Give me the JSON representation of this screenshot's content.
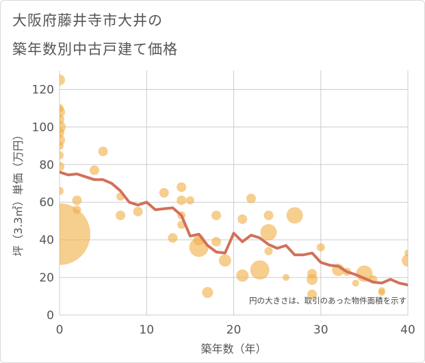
{
  "title_lines": [
    "大阪府藤井寺市大井の",
    "築年数別中古戸建て価格"
  ],
  "chart_data": {
    "type": "scatter",
    "title": "大阪府藤井寺市大井の築年数別中古戸建て価格",
    "xlabel": "築年数（年）",
    "ylabel": "坪（3.3㎡）単価（万円）",
    "xlim": [
      0,
      40
    ],
    "ylim": [
      0,
      130
    ],
    "x_ticks": [
      0,
      10,
      20,
      30,
      40
    ],
    "y_ticks": [
      0,
      20,
      40,
      60,
      80,
      100,
      120
    ],
    "grid": true,
    "annotation": "円の大きさは、取引のあった物件面積を示す",
    "colors": {
      "bubble": "#f0b048",
      "line": "#d2705a",
      "grid": "#cccccc",
      "axis_text": "#555555"
    },
    "series": [
      {
        "kind": "bubble",
        "points": [
          {
            "x": 0,
            "y": 125,
            "r": 8
          },
          {
            "x": 0,
            "y": 110,
            "r": 6
          },
          {
            "x": 0,
            "y": 108,
            "r": 8
          },
          {
            "x": 0,
            "y": 104,
            "r": 7
          },
          {
            "x": 0,
            "y": 100,
            "r": 9
          },
          {
            "x": 0,
            "y": 97,
            "r": 7
          },
          {
            "x": 0,
            "y": 93,
            "r": 8
          },
          {
            "x": 0,
            "y": 90,
            "r": 6
          },
          {
            "x": 0,
            "y": 85,
            "r": 6
          },
          {
            "x": 0,
            "y": 79,
            "r": 7
          },
          {
            "x": 0,
            "y": 66,
            "r": 6
          },
          {
            "x": 0,
            "y": 43,
            "r": 45
          },
          {
            "x": 2,
            "y": 61,
            "r": 7
          },
          {
            "x": 2,
            "y": 56,
            "r": 6
          },
          {
            "x": 4,
            "y": 77,
            "r": 7
          },
          {
            "x": 5,
            "y": 87,
            "r": 7
          },
          {
            "x": 7,
            "y": 63,
            "r": 6
          },
          {
            "x": 7,
            "y": 53,
            "r": 7
          },
          {
            "x": 9,
            "y": 55,
            "r": 7
          },
          {
            "x": 12,
            "y": 65,
            "r": 7
          },
          {
            "x": 13,
            "y": 41,
            "r": 7
          },
          {
            "x": 14,
            "y": 68,
            "r": 7
          },
          {
            "x": 14,
            "y": 61,
            "r": 7
          },
          {
            "x": 14,
            "y": 53,
            "r": 6
          },
          {
            "x": 14,
            "y": 48,
            "r": 6
          },
          {
            "x": 15,
            "y": 61,
            "r": 6
          },
          {
            "x": 16,
            "y": 40,
            "r": 8
          },
          {
            "x": 16,
            "y": 36,
            "r": 14
          },
          {
            "x": 17,
            "y": 12,
            "r": 8
          },
          {
            "x": 18,
            "y": 53,
            "r": 7
          },
          {
            "x": 18,
            "y": 39,
            "r": 7
          },
          {
            "x": 19,
            "y": 29,
            "r": 9
          },
          {
            "x": 21,
            "y": 51,
            "r": 7
          },
          {
            "x": 21,
            "y": 21,
            "r": 9
          },
          {
            "x": 22,
            "y": 62,
            "r": 7
          },
          {
            "x": 23,
            "y": 24,
            "r": 14
          },
          {
            "x": 24,
            "y": 53,
            "r": 7
          },
          {
            "x": 24,
            "y": 44,
            "r": 12
          },
          {
            "x": 24,
            "y": 34,
            "r": 6
          },
          {
            "x": 26,
            "y": 20,
            "r": 5
          },
          {
            "x": 27,
            "y": 53,
            "r": 12
          },
          {
            "x": 29,
            "y": 22,
            "r": 7
          },
          {
            "x": 29,
            "y": 19,
            "r": 8
          },
          {
            "x": 29,
            "y": 11,
            "r": 7
          },
          {
            "x": 30,
            "y": 36,
            "r": 6
          },
          {
            "x": 32,
            "y": 24,
            "r": 9
          },
          {
            "x": 33,
            "y": 23,
            "r": 6
          },
          {
            "x": 34,
            "y": 17,
            "r": 5
          },
          {
            "x": 35,
            "y": 22,
            "r": 12
          },
          {
            "x": 36,
            "y": 19,
            "r": 6
          },
          {
            "x": 37,
            "y": 13,
            "r": 5
          },
          {
            "x": 37,
            "y": 12,
            "r": 5
          },
          {
            "x": 40,
            "y": 33,
            "r": 5
          },
          {
            "x": 40,
            "y": 29,
            "r": 9
          }
        ]
      },
      {
        "kind": "line",
        "x": [
          0,
          1,
          2,
          3,
          4,
          5,
          6,
          7,
          8,
          9,
          10,
          11,
          12,
          13,
          14,
          15,
          16,
          17,
          18,
          19,
          20,
          21,
          22,
          23,
          24,
          25,
          26,
          27,
          28,
          29,
          30,
          31,
          32,
          33,
          34,
          35,
          36,
          37,
          38,
          39,
          40
        ],
        "y": [
          76,
          74.5,
          75,
          73.5,
          72,
          72,
          70,
          66,
          60,
          58.5,
          60,
          56,
          56.5,
          57,
          53,
          42,
          43,
          37,
          33.5,
          33,
          43.5,
          39,
          42.5,
          41,
          37.5,
          35.5,
          37,
          32,
          32,
          33,
          28,
          26.5,
          26,
          23,
          21.5,
          19.5,
          17.5,
          17,
          19,
          17,
          16
        ]
      }
    ]
  }
}
